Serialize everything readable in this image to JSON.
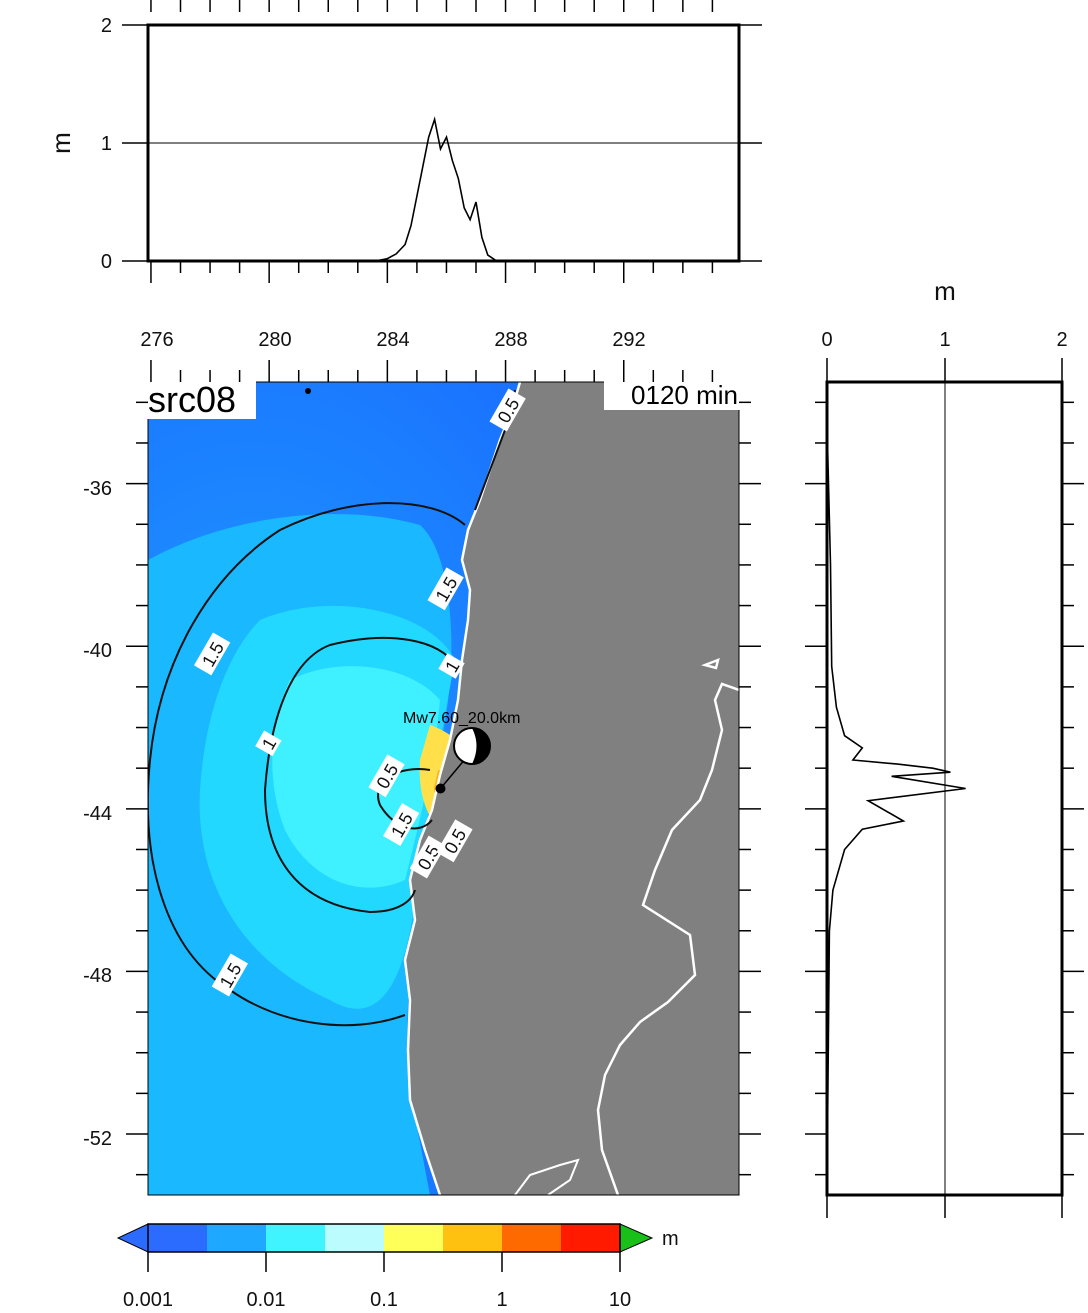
{
  "title_label": "src08",
  "time_label": "0120 min",
  "source_label": "Mw7.60_20.0km",
  "units": {
    "top": "m",
    "right": "m",
    "colorbar": "m"
  },
  "top_panel": {
    "yticks": [
      "0",
      "1",
      "2"
    ],
    "profile": [
      [
        283.6,
        0.0
      ],
      [
        284.0,
        0.02
      ],
      [
        284.3,
        0.06
      ],
      [
        284.6,
        0.14
      ],
      [
        284.8,
        0.3
      ],
      [
        285.0,
        0.55
      ],
      [
        285.2,
        0.8
      ],
      [
        285.4,
        1.05
      ],
      [
        285.6,
        1.2
      ],
      [
        285.8,
        0.95
      ],
      [
        286.0,
        1.05
      ],
      [
        286.2,
        0.85
      ],
      [
        286.4,
        0.7
      ],
      [
        286.6,
        0.45
      ],
      [
        286.8,
        0.35
      ],
      [
        287.0,
        0.5
      ],
      [
        287.2,
        0.2
      ],
      [
        287.4,
        0.05
      ],
      [
        287.7,
        0.0
      ]
    ]
  },
  "right_panel": {
    "xticks": [
      "0",
      "1",
      "2"
    ],
    "profile": [
      [
        0.0,
        -34.5
      ],
      [
        0.03,
        -38.0
      ],
      [
        0.04,
        -40.5
      ],
      [
        0.08,
        -41.5
      ],
      [
        0.15,
        -42.2
      ],
      [
        0.3,
        -42.5
      ],
      [
        0.22,
        -42.8
      ],
      [
        0.6,
        -42.9
      ],
      [
        0.9,
        -43.0
      ],
      [
        1.05,
        -43.1
      ],
      [
        0.55,
        -43.2
      ],
      [
        1.18,
        -43.5
      ],
      [
        0.35,
        -43.8
      ],
      [
        0.65,
        -44.3
      ],
      [
        0.3,
        -44.5
      ],
      [
        0.15,
        -45.0
      ],
      [
        0.05,
        -46.0
      ],
      [
        0.02,
        -47.0
      ],
      [
        0.0,
        -53.3
      ]
    ]
  },
  "map": {
    "xticks": [
      "276",
      "280",
      "284",
      "288",
      "292"
    ],
    "yticks": [
      "-36",
      "-40",
      "-44",
      "-48",
      "-52"
    ],
    "lon_range": [
      275.9,
      295.9
    ],
    "lat_range": [
      -53.5,
      -33.5
    ],
    "contour_labels": [
      {
        "text": "0.5",
        "lon": 288.1,
        "lat": -34.2
      },
      {
        "text": "1.5",
        "lon": 278.1,
        "lat": -40.2
      },
      {
        "text": "1.5",
        "lon": 286.0,
        "lat": -38.6
      },
      {
        "text": "1",
        "lon": 286.2,
        "lat": -40.5
      },
      {
        "text": "1",
        "lon": 280.0,
        "lat": -42.4
      },
      {
        "text": "0.5",
        "lon": 284.0,
        "lat": -43.2
      },
      {
        "text": "1.5",
        "lon": 284.5,
        "lat": -44.4
      },
      {
        "text": "0.5",
        "lon": 285.4,
        "lat": -45.2
      },
      {
        "text": "0.5",
        "lon": 286.3,
        "lat": -44.8
      },
      {
        "text": "1.5",
        "lon": 278.7,
        "lat": -48.1
      }
    ],
    "epicenter": {
      "lon": 285.8,
      "lat": -43.5
    }
  },
  "colorbar": {
    "labels": [
      "0.001",
      "0.01",
      "0.1",
      "1",
      "10"
    ],
    "colors": [
      "#2b6cff",
      "#1fa8ff",
      "#3ff4ff",
      "#bafcff",
      "#ffff5a",
      "#ffc10f",
      "#ff6a00",
      "#ff1a00",
      "#18c018"
    ]
  }
}
